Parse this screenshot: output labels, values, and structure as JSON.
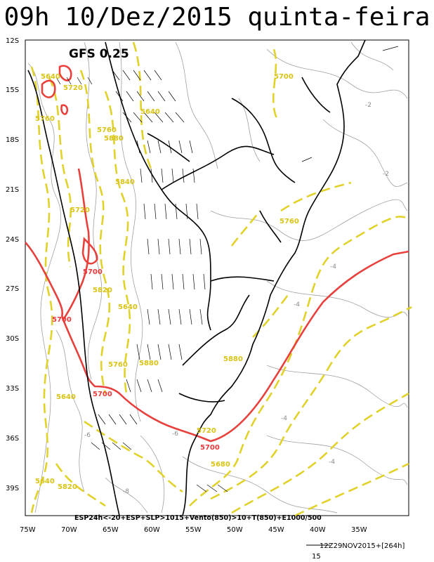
{
  "title": "09h 10/Dez/2015 quinta-feira",
  "model_label": "GFS 0.25",
  "legend_text": "ESP24h<-20+ESP+SLP>1015+Vento(850)>10+T(850)+E1000/500",
  "footer": {
    "run_info": "12Z29NOV2015+[264h]",
    "vector_scale": "15"
  },
  "lat_labels": [
    "12S",
    "15S",
    "18S",
    "21S",
    "24S",
    "27S",
    "30S",
    "33S",
    "36S",
    "39S"
  ],
  "lon_labels": [
    "75W",
    "70W",
    "65W",
    "60W",
    "55W",
    "50W",
    "45W",
    "40W",
    "35W"
  ],
  "thickness_labels": {
    "yellow": [
      "5760",
      "5640",
      "5720",
      "5880",
      "5840",
      "5720",
      "5760",
      "5700",
      "5640",
      "5640",
      "5760",
      "5820",
      "5760",
      "5640",
      "5720",
      "5680",
      "5880",
      "5880",
      "5640",
      "5820"
    ],
    "red": [
      "5700",
      "5700",
      "5700",
      "5700"
    ]
  },
  "gray_contour_labels": [
    "-2",
    "-2",
    "-4",
    "-4",
    "-4",
    "-4",
    "-6",
    "-8",
    "-6"
  ],
  "colors": {
    "yellow_contour": "#e0d22a",
    "red_contour": "#e8403c",
    "gray_contour": "#9a9a9a",
    "coast": "#000000"
  }
}
